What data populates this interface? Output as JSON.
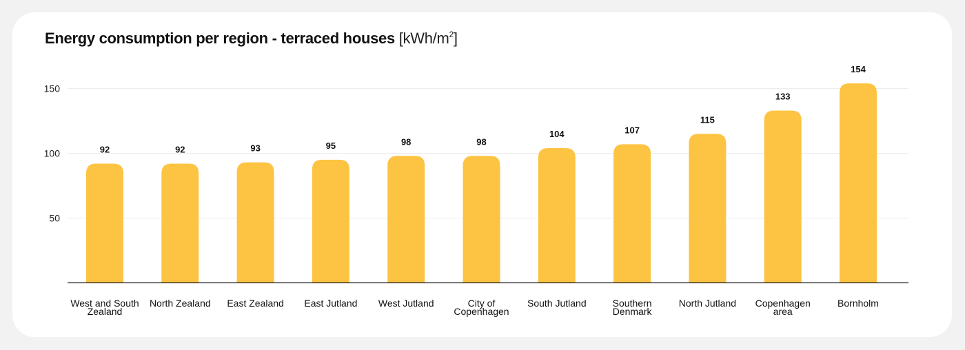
{
  "title": {
    "main": "Energy consumption per region - terraced houses",
    "unit_prefix": "[kWh/m",
    "unit_sup": "2",
    "unit_suffix": "]"
  },
  "colors": {
    "bar": "#fdc443",
    "axis": "#222222",
    "grid": "#ececec",
    "background": "#f2f2f2",
    "card": "#ffffff"
  },
  "chart_data": {
    "type": "bar",
    "title": "Energy consumption per region - terraced houses [kWh/m2]",
    "xlabel": "",
    "ylabel": "",
    "categories": [
      "West and South Zealand",
      "North Zealand",
      "East Zealand",
      "East Jutland",
      "West Jutland",
      "City of Copenhagen",
      "South Jutland",
      "Southern Denmark",
      "North Jutland",
      "Copenhagen area",
      "Bornholm"
    ],
    "category_lines": [
      [
        "West and South",
        "Zealand"
      ],
      [
        "North Zealand"
      ],
      [
        "East Zealand"
      ],
      [
        "East Jutland"
      ],
      [
        "West Jutland"
      ],
      [
        "City of",
        "Copenhagen"
      ],
      [
        "South Jutland"
      ],
      [
        "Southern",
        "Denmark"
      ],
      [
        "North Jutland"
      ],
      [
        "Copenhagen",
        "area"
      ],
      [
        "Bornholm"
      ]
    ],
    "values": [
      92,
      92,
      93,
      95,
      98,
      98,
      104,
      107,
      115,
      133,
      154
    ],
    "ylim": [
      0,
      150
    ],
    "yticks": [
      50,
      100,
      150
    ],
    "grid": true,
    "legend": "none"
  }
}
